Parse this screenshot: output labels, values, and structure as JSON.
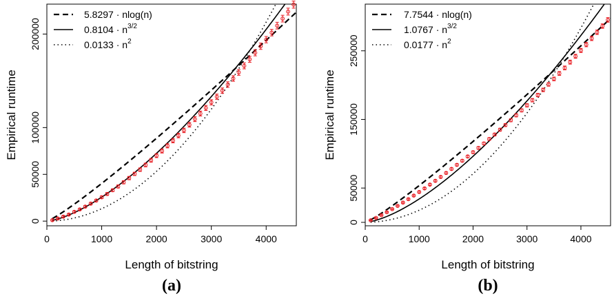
{
  "chart_data": [
    {
      "type": "scatter",
      "panel_label": "(a)",
      "xlabel": "Length of bitstring",
      "ylabel": "Empirical runtime",
      "xlim": [
        0,
        4550
      ],
      "ylim": [
        -5000,
        232000
      ],
      "xticks": [
        0,
        1000,
        2000,
        3000,
        4000
      ],
      "xtick_labels": [
        "0",
        "1000",
        "2000",
        "3000",
        "4000"
      ],
      "yticks": [
        0,
        50000,
        100000,
        200000
      ],
      "ytick_labels": [
        "0",
        "50000",
        "100000",
        "200000"
      ],
      "legend_position": "top-left",
      "fits": [
        {
          "label": "5.8297 · nlog(n)",
          "coef": 5.8297,
          "kind": "nlogn",
          "style": "dashed"
        },
        {
          "label": "0.8104 · n",
          "sup": "3/2",
          "coef": 0.8104,
          "kind": "n^1.5",
          "style": "solid"
        },
        {
          "label": "0.0133 · n",
          "sup": "2",
          "coef": 0.0133,
          "kind": "n^2",
          "style": "dotted"
        }
      ],
      "points": {
        "color": "#e8191f",
        "x": [
          100,
          200,
          300,
          400,
          500,
          600,
          700,
          800,
          900,
          1000,
          1100,
          1200,
          1300,
          1400,
          1500,
          1600,
          1700,
          1800,
          1900,
          2000,
          2100,
          2200,
          2300,
          2400,
          2500,
          2600,
          2700,
          2800,
          2900,
          3000,
          3100,
          3200,
          3300,
          3400,
          3500,
          3600,
          3700,
          3800,
          3900,
          4000,
          4100,
          4200,
          4300,
          4400,
          4500
        ],
        "y": [
          1000,
          2800,
          4800,
          7000,
          9900,
          12500,
          15500,
          18700,
          22000,
          25500,
          29000,
          33000,
          37000,
          41500,
          46000,
          50500,
          55000,
          60000,
          65000,
          70000,
          75000,
          80500,
          86000,
          91500,
          97000,
          103000,
          109000,
          115000,
          121000,
          127000,
          133000,
          139500,
          146000,
          152500,
          159000,
          166000,
          173000,
          180000,
          187000,
          194000,
          201500,
          209000,
          216500,
          224000,
          231500
        ],
        "err": [
          800,
          900,
          900,
          1000,
          1100,
          1100,
          1200,
          1300,
          1300,
          1400,
          1500,
          1500,
          1600,
          1700,
          1800,
          1800,
          1900,
          2000,
          2000,
          2100,
          2200,
          2200,
          2300,
          2400,
          2400,
          2500,
          2600,
          2600,
          2700,
          2800,
          2800,
          2900,
          3000,
          3000,
          3100,
          3200,
          3200,
          3300,
          3400,
          3400,
          3500,
          3600,
          3600,
          3700,
          3800
        ]
      }
    },
    {
      "type": "scatter",
      "panel_label": "(b)",
      "xlabel": "Length of bitstring",
      "ylabel": "Empirical runtime",
      "xlim": [
        0,
        4550
      ],
      "ylim": [
        -5000,
        318000
      ],
      "xticks": [
        0,
        1000,
        2000,
        3000,
        4000
      ],
      "xtick_labels": [
        "0",
        "1000",
        "2000",
        "3000",
        "4000"
      ],
      "yticks": [
        0,
        50000,
        150000,
        250000
      ],
      "ytick_labels": [
        "0",
        "50000",
        "150000",
        "250000"
      ],
      "legend_position": "top-left",
      "fits": [
        {
          "label": "7.7544 · nlog(n)",
          "coef": 7.7544,
          "kind": "nlogn",
          "style": "dashed"
        },
        {
          "label": "1.0767 · n",
          "sup": "3/2",
          "coef": 1.0767,
          "kind": "n^1.5",
          "style": "solid"
        },
        {
          "label": "0.0177 · n",
          "sup": "2",
          "coef": 0.0177,
          "kind": "n^2",
          "style": "dotted"
        }
      ],
      "points": {
        "color": "#e8191f",
        "x": [
          100,
          200,
          300,
          400,
          500,
          600,
          700,
          800,
          900,
          1000,
          1100,
          1200,
          1300,
          1400,
          1500,
          1600,
          1700,
          1800,
          1900,
          2000,
          2100,
          2200,
          2300,
          2400,
          2500,
          2600,
          2700,
          2800,
          2900,
          3000,
          3100,
          3200,
          3300,
          3400,
          3500,
          3600,
          3700,
          3800,
          3900,
          4000,
          4100,
          4200,
          4300,
          4400,
          4500
        ],
        "y": [
          3000,
          6500,
          10500,
          14800,
          19300,
          24000,
          28800,
          33800,
          39000,
          44200,
          49500,
          55000,
          60500,
          66200,
          72000,
          77800,
          83800,
          89800,
          96000,
          102200,
          108500,
          115000,
          121500,
          128000,
          135000,
          141800,
          148800,
          156000,
          163200,
          170500,
          178000,
          185500,
          193000,
          201000,
          209000,
          217000,
          225000,
          233500,
          242000,
          250500,
          259000,
          268000,
          277000,
          286000,
          295000
        ],
        "err": [
          600,
          700,
          800,
          800,
          900,
          1000,
          1000,
          1100,
          1100,
          1200,
          1300,
          1300,
          1400,
          1400,
          1500,
          1600,
          1600,
          1700,
          1700,
          1800,
          1900,
          1900,
          2000,
          2000,
          2100,
          2200,
          2200,
          2300,
          2300,
          2400,
          2500,
          2500,
          2600,
          2600,
          2700,
          2800,
          2800,
          2900,
          2900,
          3000,
          3100,
          3100,
          3200,
          3200,
          3300
        ]
      }
    }
  ]
}
